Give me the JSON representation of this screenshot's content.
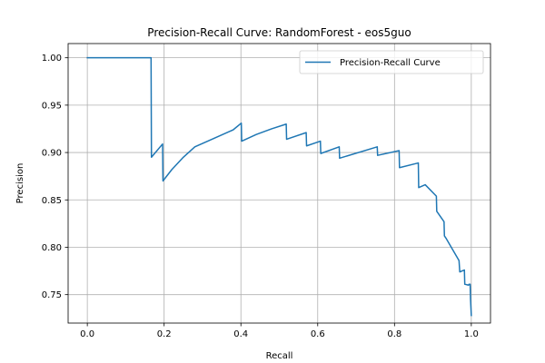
{
  "chart_data": {
    "type": "line",
    "title": "Precision-Recall Curve: RandomForest - eos5guo",
    "xlabel": "Recall",
    "ylabel": "Precision",
    "xlim": [
      -0.05,
      1.05
    ],
    "ylim": [
      0.72,
      1.015
    ],
    "grid": true,
    "legend_position": "top-right",
    "line_color": "#1f77b4",
    "x_ticks": [
      0.0,
      0.2,
      0.4,
      0.6,
      0.8,
      1.0
    ],
    "x_tick_labels": [
      "0.0",
      "0.2",
      "0.4",
      "0.6",
      "0.8",
      "1.0"
    ],
    "y_ticks": [
      0.75,
      0.8,
      0.85,
      0.9,
      0.95,
      1.0
    ],
    "y_tick_labels": [
      "0.75",
      "0.80",
      "0.85",
      "0.90",
      "0.95",
      "1.00"
    ],
    "series": [
      {
        "name": "Precision-Recall Curve",
        "x": [
          0.0,
          0.166,
          0.167,
          0.196,
          0.197,
          0.22,
          0.25,
          0.28,
          0.33,
          0.38,
          0.401,
          0.402,
          0.44,
          0.48,
          0.518,
          0.519,
          0.57,
          0.571,
          0.607,
          0.608,
          0.656,
          0.657,
          0.755,
          0.756,
          0.812,
          0.813,
          0.862,
          0.863,
          0.88,
          0.909,
          0.91,
          0.929,
          0.93,
          0.935,
          0.968,
          0.97,
          0.982,
          0.983,
          0.993,
          0.994,
          0.997,
          0.998,
          1.0
        ],
        "y": [
          1.0,
          1.0,
          0.895,
          0.909,
          0.87,
          0.882,
          0.895,
          0.906,
          0.915,
          0.924,
          0.931,
          0.912,
          0.919,
          0.925,
          0.93,
          0.914,
          0.921,
          0.907,
          0.912,
          0.899,
          0.906,
          0.894,
          0.906,
          0.897,
          0.902,
          0.884,
          0.889,
          0.863,
          0.866,
          0.854,
          0.838,
          0.827,
          0.812,
          0.809,
          0.786,
          0.774,
          0.776,
          0.761,
          0.76,
          0.761,
          0.761,
          0.745,
          0.728
        ]
      }
    ]
  }
}
